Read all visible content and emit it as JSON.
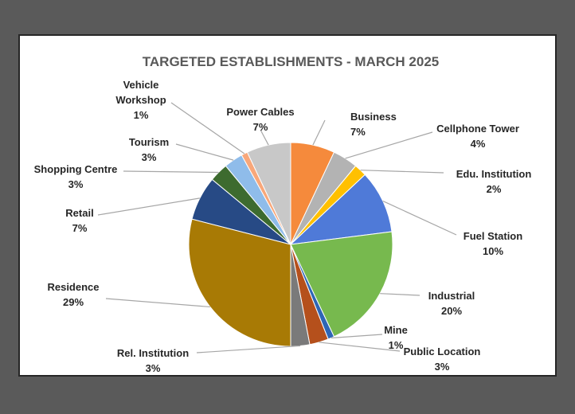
{
  "chart_data": {
    "type": "pie",
    "title": "TARGETED ESTABLISHMENTS - MARCH 2025",
    "slices": [
      {
        "label": "Business",
        "value": 7,
        "pct_label": "7%",
        "color": "#f58a3c"
      },
      {
        "label": "Cellphone Tower",
        "value": 4,
        "pct_label": "4%",
        "color": "#b3b3b3"
      },
      {
        "label": "Edu. Institution",
        "value": 2,
        "pct_label": "2%",
        "color": "#ffc000"
      },
      {
        "label": "Fuel Station",
        "value": 10,
        "pct_label": "10%",
        "color": "#4f7ad8"
      },
      {
        "label": "Industrial",
        "value": 20,
        "pct_label": "20%",
        "color": "#77b94e"
      },
      {
        "label": "Mine",
        "value": 1,
        "pct_label": "1%",
        "color": "#2e66b5"
      },
      {
        "label": "Public Location",
        "value": 3,
        "pct_label": "3%",
        "color": "#b5501c"
      },
      {
        "label": "Rel. Institution",
        "value": 3,
        "pct_label": "3%",
        "color": "#7a7a7a"
      },
      {
        "label": "Residence",
        "value": 29,
        "pct_label": "29%",
        "color": "#a87a05"
      },
      {
        "label": "Retail",
        "value": 7,
        "pct_label": "7%",
        "color": "#274a85"
      },
      {
        "label": "Shopping Centre",
        "value": 3,
        "pct_label": "3%",
        "color": "#3d6b2f"
      },
      {
        "label": "Tourism",
        "value": 3,
        "pct_label": "3%",
        "color": "#8fbcea"
      },
      {
        "label": "Vehicle Workshop",
        "value": 1,
        "pct_label": "1%",
        "color": "#f8a77a"
      },
      {
        "label": "Power Cables",
        "value": 7,
        "pct_label": "7%",
        "color": "#c8c8c8"
      }
    ],
    "legend": "none",
    "data_labels": "outside with leader lines"
  }
}
